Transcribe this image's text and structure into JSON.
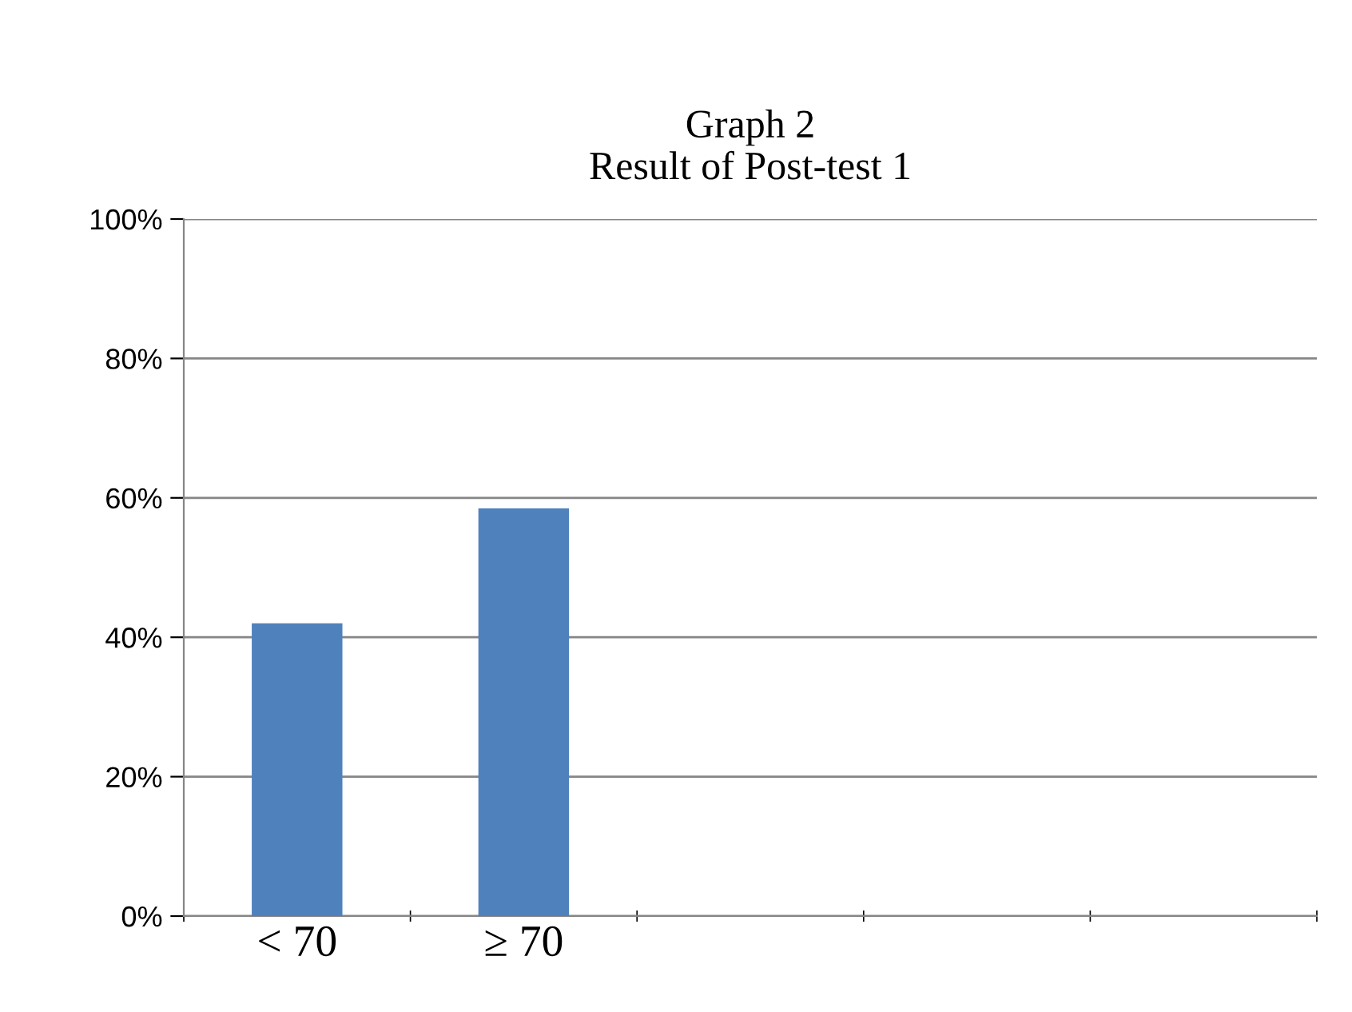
{
  "chart_data": {
    "type": "bar",
    "title": "Graph 2\nResult of Post-test 1",
    "categories": [
      "< 70",
      "≥ 70",
      null,
      null,
      null
    ],
    "values": [
      42,
      58.5,
      null,
      null,
      null
    ],
    "color": "#4f81bd",
    "ylim": [
      0,
      100
    ],
    "yticks": [
      {
        "value": 0,
        "label": "0%"
      },
      {
        "value": 20,
        "label": "20%"
      },
      {
        "value": 40,
        "label": "40%"
      },
      {
        "value": 60,
        "label": "60%"
      },
      {
        "value": 80,
        "label": "80%"
      },
      {
        "value": 100,
        "label": "100%"
      }
    ],
    "grid": "y"
  }
}
